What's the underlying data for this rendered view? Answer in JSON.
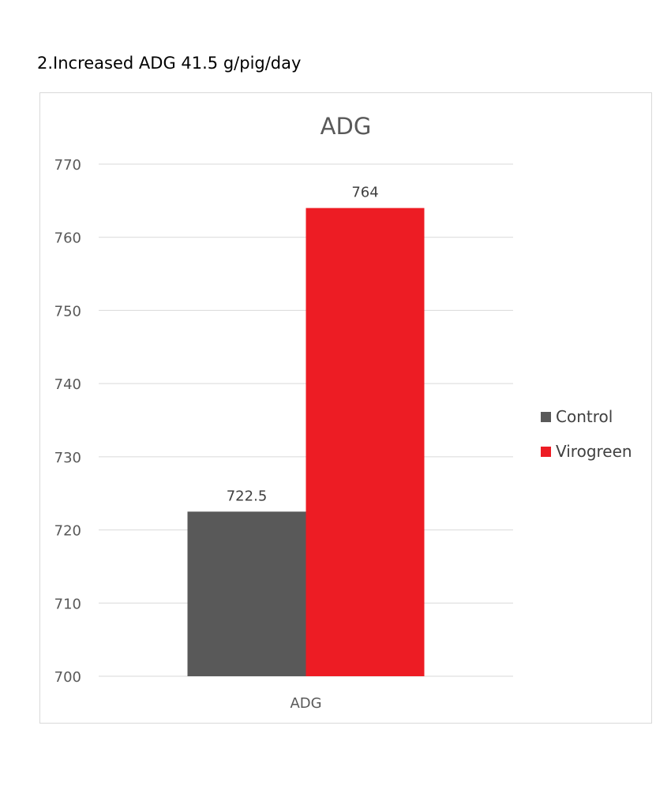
{
  "heading": "2.Increased ADG 41.5 g/pig/day",
  "chart_data": {
    "type": "bar",
    "title": "ADG",
    "categories": [
      "ADG"
    ],
    "series": [
      {
        "name": "Control",
        "values": [
          722.5
        ],
        "color": "#595959"
      },
      {
        "name": "Virogreen",
        "values": [
          764
        ],
        "color": "#ed1c24"
      }
    ],
    "data_labels": [
      "722.5",
      "764"
    ],
    "ylim": [
      700,
      770
    ],
    "yticks": [
      700,
      710,
      720,
      730,
      740,
      750,
      760,
      770
    ],
    "xlabel": "",
    "ylabel": "",
    "grid": true,
    "legend_position": "right"
  }
}
